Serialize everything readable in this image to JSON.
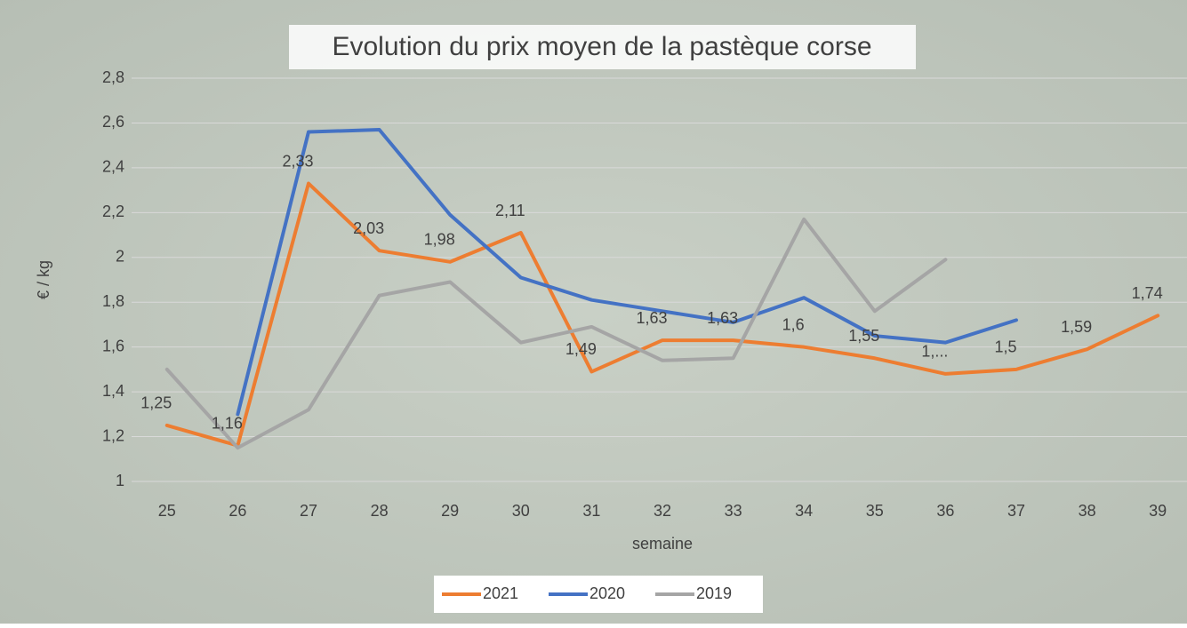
{
  "chart_data": {
    "type": "line",
    "title": "Evolution du prix moyen de la pastèque corse",
    "x_label": "semaine",
    "y_label": "€ / kg",
    "categories": [
      "25",
      "26",
      "27",
      "28",
      "29",
      "30",
      "31",
      "32",
      "33",
      "34",
      "35",
      "36",
      "37",
      "38",
      "39"
    ],
    "series": [
      {
        "name": "2021",
        "color": "#ed7d31",
        "values": [
          1.25,
          1.16,
          2.33,
          2.03,
          1.98,
          2.11,
          1.49,
          1.63,
          1.63,
          1.6,
          1.55,
          1.48,
          1.5,
          1.59,
          1.74
        ],
        "value_labels": [
          "1,25",
          "1,16",
          "2,33",
          "2,03",
          "1,98",
          "2,11",
          "1,49",
          "1,63",
          "1,63",
          "1,6",
          "1,55",
          "1,...",
          "1,5",
          "1,59",
          "1,74"
        ]
      },
      {
        "name": "2020",
        "color": "#4472c4",
        "values": [
          null,
          1.3,
          2.56,
          2.57,
          2.19,
          1.91,
          1.81,
          1.76,
          1.71,
          1.82,
          1.65,
          1.62,
          1.72,
          null,
          null
        ]
      },
      {
        "name": "2019",
        "color": "#a5a5a5",
        "values": [
          1.5,
          1.15,
          1.32,
          1.83,
          1.89,
          1.62,
          1.69,
          1.54,
          1.55,
          2.17,
          1.76,
          1.99,
          null,
          null,
          null
        ]
      }
    ],
    "ylim": [
      1,
      2.8
    ],
    "yticks": [
      1,
      {
        "value": 1.2,
        "label": "1,2"
      },
      {
        "value": 1.4,
        "label": "1,4"
      },
      {
        "value": 1.6,
        "label": "1,6"
      },
      {
        "value": 1.8,
        "label": "1,8"
      },
      2,
      {
        "value": 2.2,
        "label": "2,2"
      },
      {
        "value": 2.4,
        "label": "2,4"
      },
      {
        "value": 2.6,
        "label": "2,6"
      },
      {
        "value": 2.8,
        "label": "2,8"
      }
    ],
    "grid": true,
    "legend": "bottom"
  }
}
